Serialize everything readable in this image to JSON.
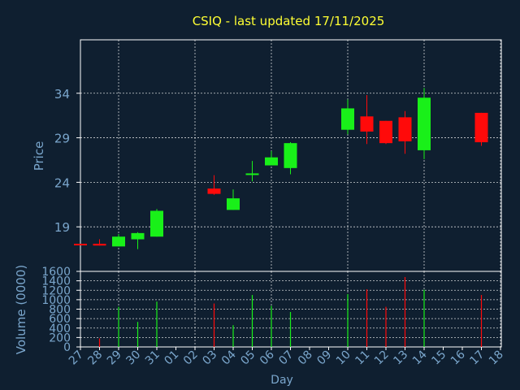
{
  "chart_data": [
    {
      "type": "candlestick",
      "title": "CSIQ - last updated 17/11/2025",
      "ylabel": "Price",
      "ylim": [
        14,
        40
      ],
      "yticks": [
        19,
        24,
        29,
        34
      ],
      "x_categories": [
        "27",
        "28",
        "29",
        "30",
        "31",
        "01",
        "02",
        "03",
        "04",
        "05",
        "06",
        "07",
        "08",
        "09",
        "10",
        "11",
        "12",
        "13",
        "14",
        "15",
        "16",
        "17",
        "18"
      ],
      "colors": {
        "up": "#19f019",
        "down": "#ff0a0a",
        "grid": "#ffffff",
        "axis": "#ffffff",
        "tick_label": "#7aa6cc",
        "title": "#ffff33",
        "background": "#0f1f30"
      },
      "candles": [
        {
          "x": "27",
          "open": 17.1,
          "high": 17.1,
          "low": 17.0,
          "close": 17.0
        },
        {
          "x": "28",
          "open": 17.1,
          "high": 17.6,
          "low": 16.9,
          "close": 16.9
        },
        {
          "x": "29",
          "open": 16.8,
          "high": 18.2,
          "low": 16.8,
          "close": 17.9
        },
        {
          "x": "30",
          "open": 17.6,
          "high": 18.4,
          "low": 16.5,
          "close": 18.3
        },
        {
          "x": "31",
          "open": 17.9,
          "high": 21.0,
          "low": 17.9,
          "close": 20.8
        },
        {
          "x": "03",
          "open": 23.3,
          "high": 24.8,
          "low": 22.6,
          "close": 22.7
        },
        {
          "x": "04",
          "open": 20.9,
          "high": 23.2,
          "low": 20.9,
          "close": 22.2
        },
        {
          "x": "05",
          "open": 24.9,
          "high": 26.4,
          "low": 24.1,
          "close": 25.0
        },
        {
          "x": "06",
          "open": 25.9,
          "high": 27.5,
          "low": 25.9,
          "close": 26.8
        },
        {
          "x": "07",
          "open": 25.6,
          "high": 28.5,
          "low": 24.9,
          "close": 28.4
        },
        {
          "x": "10",
          "open": 29.9,
          "high": 33.3,
          "low": 29.4,
          "close": 32.3
        },
        {
          "x": "11",
          "open": 31.4,
          "high": 33.8,
          "low": 28.3,
          "close": 29.7
        },
        {
          "x": "12",
          "open": 30.9,
          "high": 30.9,
          "low": 28.3,
          "close": 28.4
        },
        {
          "x": "13",
          "open": 31.3,
          "high": 32.0,
          "low": 27.2,
          "close": 28.6
        },
        {
          "x": "14",
          "open": 27.6,
          "high": 34.6,
          "low": 26.6,
          "close": 33.5
        },
        {
          "x": "17",
          "open": 31.8,
          "high": 31.8,
          "low": 28.1,
          "close": 28.5
        }
      ]
    },
    {
      "type": "bar",
      "ylabel": "Volume (0000)",
      "xlabel": "Day",
      "ylim": [
        0,
        1600
      ],
      "yticks": [
        0,
        200,
        400,
        600,
        800,
        1000,
        1200,
        1400,
        1600
      ],
      "x_categories": [
        "27",
        "28",
        "29",
        "30",
        "31",
        "01",
        "02",
        "03",
        "04",
        "05",
        "06",
        "07",
        "08",
        "09",
        "10",
        "11",
        "12",
        "13",
        "14",
        "15",
        "16",
        "17",
        "18"
      ],
      "bars": [
        {
          "x": "28",
          "value": 180,
          "direction": "down"
        },
        {
          "x": "29",
          "value": 850,
          "direction": "up"
        },
        {
          "x": "30",
          "value": 530,
          "direction": "up"
        },
        {
          "x": "31",
          "value": 960,
          "direction": "up"
        },
        {
          "x": "03",
          "value": 920,
          "direction": "down"
        },
        {
          "x": "04",
          "value": 460,
          "direction": "up"
        },
        {
          "x": "05",
          "value": 1100,
          "direction": "up"
        },
        {
          "x": "06",
          "value": 870,
          "direction": "up"
        },
        {
          "x": "07",
          "value": 740,
          "direction": "up"
        },
        {
          "x": "10",
          "value": 1120,
          "direction": "up"
        },
        {
          "x": "11",
          "value": 1220,
          "direction": "down"
        },
        {
          "x": "12",
          "value": 850,
          "direction": "down"
        },
        {
          "x": "13",
          "value": 1480,
          "direction": "down"
        },
        {
          "x": "14",
          "value": 1210,
          "direction": "up"
        },
        {
          "x": "17",
          "value": 1100,
          "direction": "down"
        }
      ]
    }
  ]
}
